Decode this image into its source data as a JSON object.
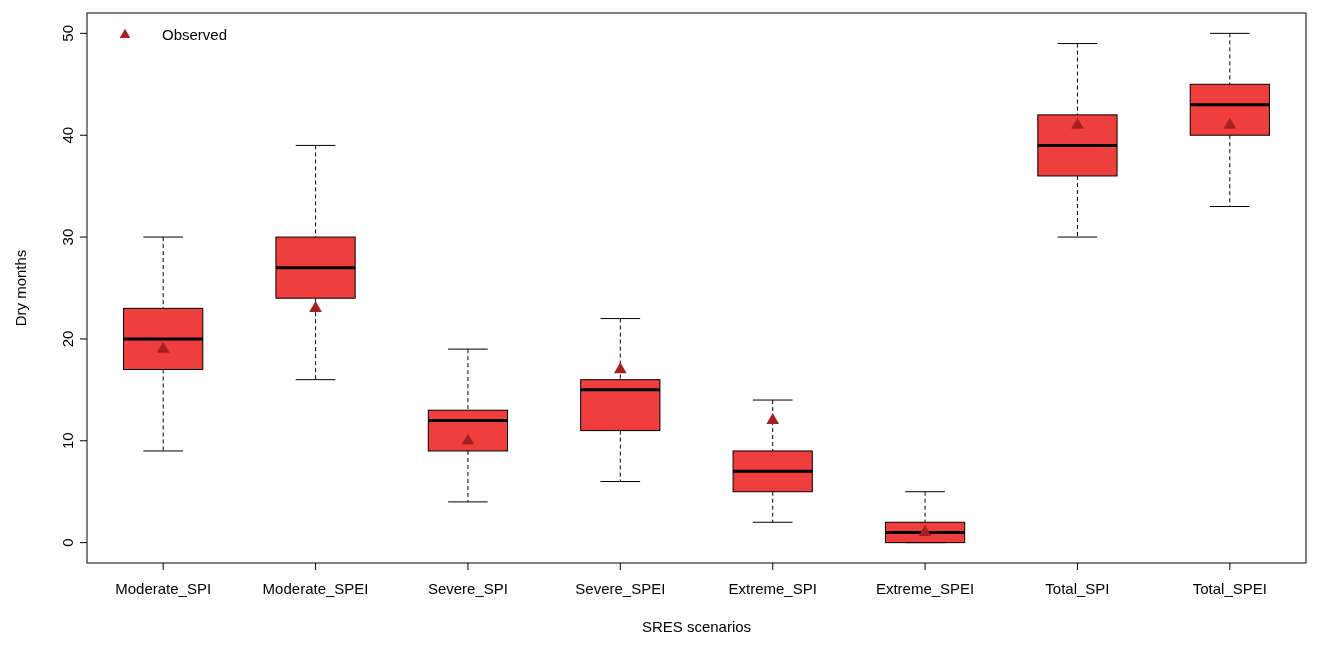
{
  "chart_data": {
    "type": "box",
    "xlabel": "SRES scenarios",
    "ylabel": "Dry months",
    "categories": [
      "Moderate_SPI",
      "Moderate_SPEI",
      "Severe_SPI",
      "Severe_SPEI",
      "Extreme_SPI",
      "Extreme_SPEI",
      "Total_SPI",
      "Total_SPEI"
    ],
    "ylim": [
      -2,
      52
    ],
    "yticks": [
      0,
      10,
      20,
      30,
      40,
      50
    ],
    "grid": false,
    "legend": "top left",
    "series": [
      {
        "color": "#ef3e3e",
        "boxes": [
          {
            "low": 9,
            "q1": 17,
            "median": 20,
            "q3": 23,
            "high": 30
          },
          {
            "low": 16,
            "q1": 24,
            "median": 27,
            "q3": 30,
            "high": 39
          },
          {
            "low": 4,
            "q1": 9,
            "median": 12,
            "q3": 13,
            "high": 19
          },
          {
            "low": 6,
            "q1": 11,
            "median": 15,
            "q3": 16,
            "high": 22
          },
          {
            "low": 2,
            "q1": 5,
            "median": 7,
            "q3": 9,
            "high": 14
          },
          {
            "low": 0,
            "q1": 0,
            "median": 1,
            "q3": 2,
            "high": 5
          },
          {
            "low": 30,
            "q1": 36,
            "median": 39,
            "q3": 42,
            "high": 49
          },
          {
            "low": 33,
            "q1": 40,
            "median": 43,
            "q3": 45,
            "high": 50
          }
        ]
      },
      {
        "type": "scatter",
        "name": "Observed",
        "color": "#a3201f",
        "marker": "triangle",
        "x": [
          "Moderate_SPI",
          "Moderate_SPEI",
          "Severe_SPI",
          "Severe_SPEI",
          "Extreme_SPI",
          "Extreme_SPEI",
          "Total_SPI",
          "Total_SPEI"
        ],
        "values": [
          19,
          23,
          10,
          17,
          12,
          1,
          41,
          41
        ]
      }
    ]
  }
}
